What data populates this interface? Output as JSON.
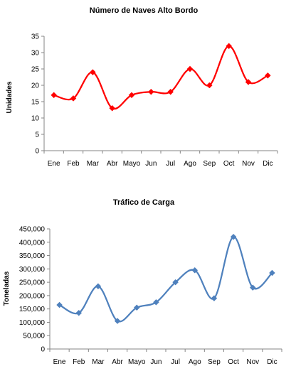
{
  "chart_data": [
    {
      "type": "line",
      "title": "Número de Naves Alto Bordo",
      "xlabel": "",
      "ylabel": "Unidades",
      "categories": [
        "Ene",
        "Feb",
        "Mar",
        "Abr",
        "Mayo",
        "Jun",
        "Jul",
        "Ago",
        "Sep",
        "Oct",
        "Nov",
        "Dic"
      ],
      "series": [
        {
          "values": [
            17,
            16,
            24,
            13,
            17,
            18,
            18,
            25,
            20,
            32,
            21,
            23
          ]
        }
      ],
      "ylim": [
        0,
        35
      ],
      "yticks": [
        "0",
        "5",
        "10",
        "15",
        "20",
        "25",
        "30",
        "35"
      ],
      "smooth": true,
      "marker": "diamond",
      "color": "#ff0000",
      "grid": false,
      "legend": "none"
    },
    {
      "type": "line",
      "title": "Tráfico de Carga",
      "xlabel": "",
      "ylabel": "Toneladas",
      "categories": [
        "Ene",
        "Feb",
        "Mar",
        "Abr",
        "Mayo",
        "Jun",
        "Jul",
        "Ago",
        "Sep",
        "Oct",
        "Nov",
        "Dic"
      ],
      "series": [
        {
          "values": [
            165000,
            135000,
            235000,
            105000,
            155000,
            175000,
            250000,
            295000,
            190000,
            420000,
            230000,
            285000
          ]
        }
      ],
      "ylim": [
        0,
        450000
      ],
      "yticks": [
        "0",
        "50,000",
        "100,000",
        "150,000",
        "200,000",
        "250,000",
        "300,000",
        "350,000",
        "400,000",
        "450,000"
      ],
      "smooth": true,
      "marker": "diamond",
      "color": "#4f81bd",
      "grid": false,
      "legend": "none"
    }
  ]
}
